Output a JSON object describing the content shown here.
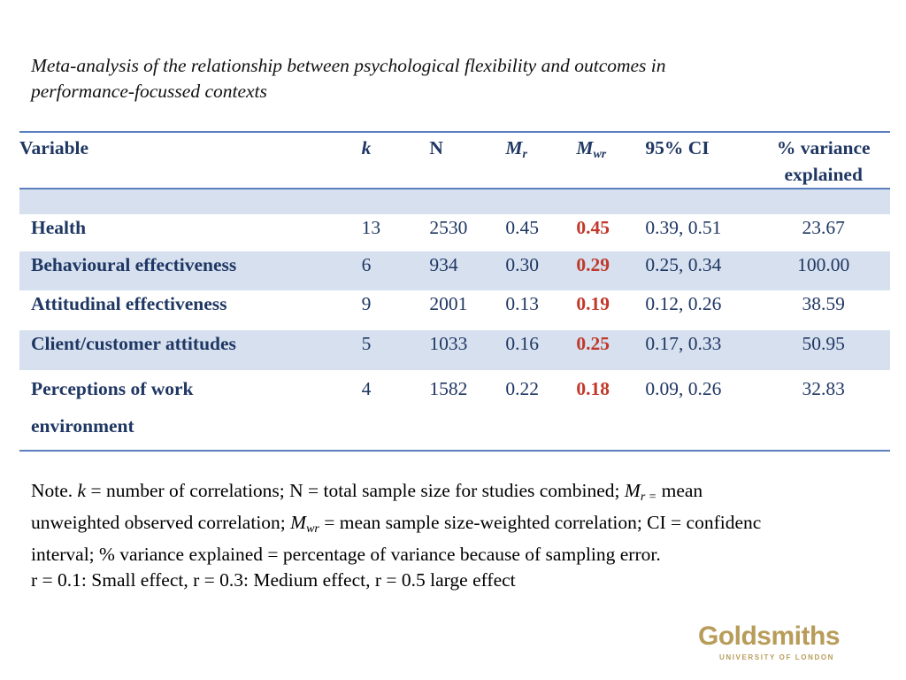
{
  "title_line1": "Meta-analysis of the relationship between psychological flexibility and outcomes in",
  "title_line2": "performance-focussed contexts",
  "table": {
    "headers": {
      "variable": "Variable",
      "k": "k",
      "n": "N",
      "mr": "M",
      "mr_sub": "r",
      "mwr": "M",
      "mwr_sub": "wr",
      "ci": "95% CI",
      "pct_line1": "% variance",
      "pct_line2": "explained"
    },
    "rows": [
      {
        "variable": "Health",
        "k": "13",
        "n": "2530",
        "mr": "0.45",
        "mwr": "0.45",
        "ci": "0.39, 0.51",
        "pct": "23.67"
      },
      {
        "variable": "Behavioural effectiveness",
        "k": "6",
        "n": "934",
        "mr": "0.30",
        "mwr": "0.29",
        "ci": "0.25, 0.34",
        "pct": "100.00"
      },
      {
        "variable": "Attitudinal effectiveness",
        "k": "9",
        "n": "2001",
        "mr": "0.13",
        "mwr": "0.19",
        "ci": "0.12, 0.26",
        "pct": "38.59"
      },
      {
        "variable": "Client/customer attitudes",
        "k": "5",
        "n": "1033",
        "mr": "0.16",
        "mwr": "0.25",
        "ci": "0.17, 0.33",
        "pct": "50.95"
      },
      {
        "variable_line1": "Perceptions of work",
        "variable_line2": "environment",
        "k": "4",
        "n": "1582",
        "mr": "0.22",
        "mwr": "0.18",
        "ci": "0.09, 0.26",
        "pct": "32.83"
      }
    ]
  },
  "note": {
    "line1_a": "Note. ",
    "line1_k": "k",
    "line1_b": " = number of correlations; N = total sample size for studies combined; ",
    "line1_m": "M",
    "line1_sub": "r =",
    "line1_c": " mean",
    "line2_a": "unweighted observed correlation; ",
    "line2_m": "M",
    "line2_sub": "wr",
    "line2_b": " = mean sample size-weighted correlation; CI = confidenc",
    "line3": "interval; % variance explained = percentage of variance because of sampling error.",
    "line4": "r = 0.1: Small effect, r = 0.3: Medium effect, r = 0.5 large effect"
  },
  "logo": {
    "name": "Goldsmiths",
    "subtitle": "UNIVERSITY OF LONDON"
  },
  "colors": {
    "header_text": "#1f3763",
    "rule": "#5b7fbd",
    "band": "#d6e0ef",
    "highlight": "#c0392b",
    "logo": "#b89c5a"
  }
}
